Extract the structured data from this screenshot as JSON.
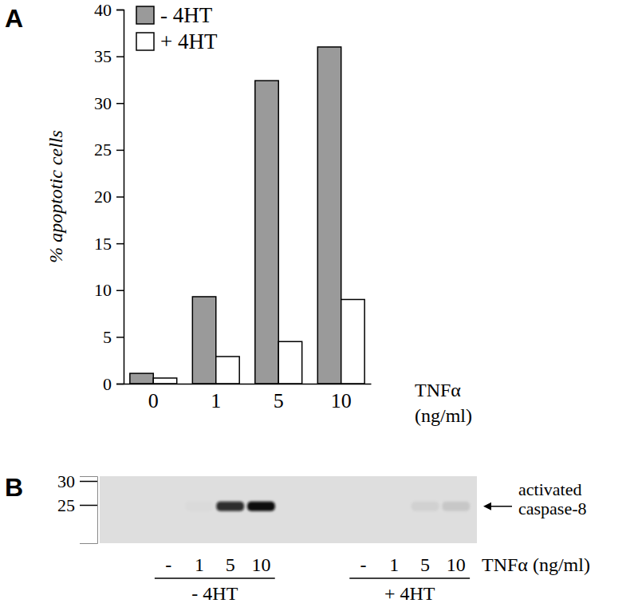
{
  "chart_data": [
    {
      "type": "bar",
      "title": "A",
      "y_label": "% apoptotic cells",
      "x_label": [
        "TNFα",
        "(ng/ml)"
      ],
      "categories": [
        "0",
        "1",
        "5",
        "10"
      ],
      "series": [
        {
          "name": "- 4HT",
          "color": "#9a9a9a",
          "values": [
            1.1,
            9.3,
            32.4,
            36.0
          ]
        },
        {
          "name": "+ 4HT",
          "color": "#ffffff",
          "values": [
            0.6,
            2.9,
            4.5,
            9.0
          ]
        }
      ],
      "ylim": [
        0,
        40
      ],
      "yticks": [
        0,
        5,
        10,
        15,
        20,
        25,
        30,
        35,
        40
      ],
      "legend": "upper left",
      "grid": false
    },
    {
      "type": "blot",
      "title": "B",
      "x_label": "TNFα (ng/ml)",
      "annotation": [
        "activated",
        "caspase-8"
      ],
      "ylim": [
        17,
        31
      ],
      "yticks": [
        30,
        25
      ],
      "band_kda": 24.7,
      "groups": [
        {
          "label": "- 4HT",
          "lanes": [
            "-",
            "1",
            "5",
            "10"
          ],
          "band_intensity": [
            0,
            0.02,
            0.85,
            1.0
          ]
        },
        {
          "label": "+ 4HT",
          "lanes": [
            "-",
            "1",
            "5",
            "10"
          ],
          "band_intensity": [
            0,
            0,
            0.06,
            0.1
          ]
        }
      ]
    }
  ]
}
